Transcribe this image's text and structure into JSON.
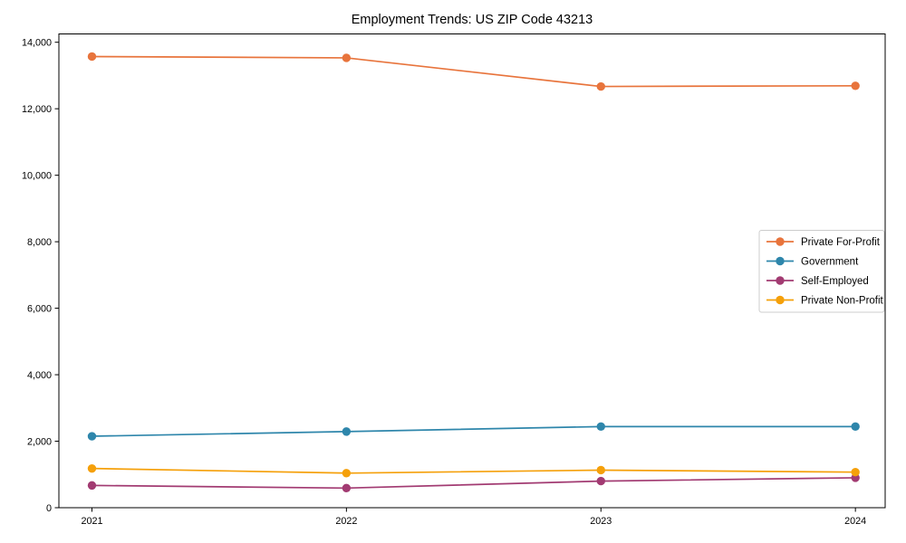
{
  "figure": {
    "title": "Employment Trends: US ZIP Code 43213",
    "background_color": "#ffffff",
    "spine_color": "#000000",
    "legend_border_color": "#cccccc"
  },
  "chart_data": {
    "type": "line",
    "title": "Employment Trends: US ZIP Code 43213",
    "x": [
      2021,
      2022,
      2023,
      2024
    ],
    "xtick_labels": [
      "2021",
      "2022",
      "2023",
      "2024"
    ],
    "series": [
      {
        "name": "Private For-Profit",
        "color": "#E8743C",
        "values": [
          13570,
          13530,
          12670,
          12690
        ]
      },
      {
        "name": "Government",
        "color": "#2E86AB",
        "values": [
          2150,
          2290,
          2440,
          2440
        ]
      },
      {
        "name": "Self-Employed",
        "color": "#A23B72",
        "values": [
          670,
          590,
          800,
          900
        ]
      },
      {
        "name": "Private Non-Profit",
        "color": "#F5A00A",
        "values": [
          1180,
          1040,
          1130,
          1070
        ]
      }
    ],
    "xlabel": "",
    "ylabel": "",
    "ylim": [
      0,
      14250
    ],
    "yticks": [
      0,
      2000,
      4000,
      6000,
      8000,
      10000,
      12000,
      14000
    ],
    "ytick_labels": [
      "0",
      "2,000",
      "4,000",
      "6,000",
      "8,000",
      "10,000",
      "12,000",
      "14,000"
    ],
    "grid": false,
    "legend_position": "center right",
    "marker": "circle"
  }
}
